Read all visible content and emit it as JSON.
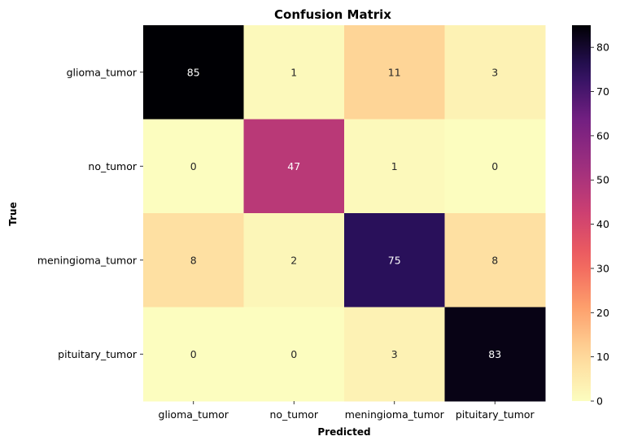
{
  "chart_data": {
    "type": "heatmap",
    "title": "Confusion Matrix",
    "xlabel": "Predicted",
    "ylabel": "True",
    "x_categories": [
      "glioma_tumor",
      "no_tumor",
      "meningioma_tumor",
      "pituitary_tumor"
    ],
    "y_categories": [
      "glioma_tumor",
      "no_tumor",
      "meningioma_tumor",
      "pituitary_tumor"
    ],
    "values": [
      [
        85,
        1,
        11,
        3
      ],
      [
        0,
        47,
        1,
        0
      ],
      [
        8,
        2,
        75,
        8
      ],
      [
        0,
        0,
        3,
        83
      ]
    ],
    "colormap": "magma_r",
    "vmin": 0,
    "vmax": 85,
    "colorbar_ticks": [
      0,
      10,
      20,
      30,
      40,
      50,
      60,
      70,
      80
    ],
    "colorbar_position": "right"
  }
}
